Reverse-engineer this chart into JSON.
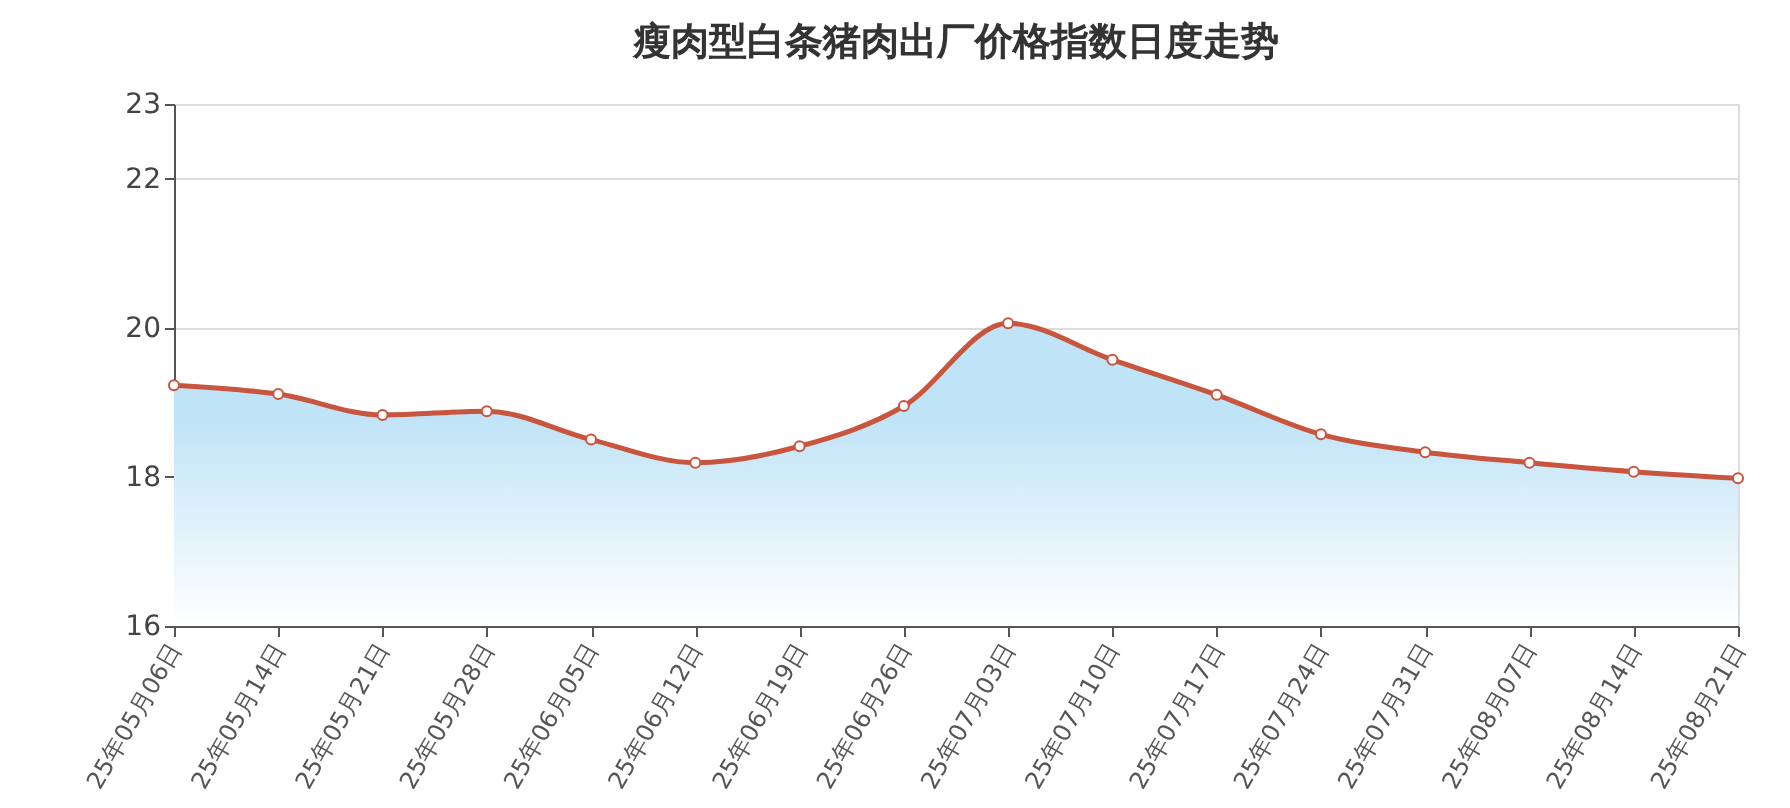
{
  "chart_data": {
    "type": "area",
    "title": "瘦肉型白条猪肉出厂价格指数日度走势",
    "categories": [
      "25年05月06日",
      "25年05月14日",
      "25年05月21日",
      "25年05月28日",
      "25年06月05日",
      "25年06月12日",
      "25年06月19日",
      "25年06月26日",
      "25年07月03日",
      "25年07月10日",
      "25年07月17日",
      "25年07月24日",
      "25年07月31日",
      "25年08月07日",
      "25年08月14日",
      "25年08月21日"
    ],
    "series": [
      {
        "color": "#c8553d",
        "values": [
          19.23,
          19.11,
          18.83,
          18.88,
          18.5,
          18.19,
          18.41,
          18.95,
          20.06,
          19.57,
          19.1,
          18.57,
          18.33,
          18.19,
          18.07,
          17.98
        ]
      }
    ],
    "ylim": [
      16,
      23
    ],
    "yticks": [
      16,
      18,
      20,
      22,
      23
    ],
    "grid": "y",
    "marker": "circle",
    "line_style": "solid",
    "legend": false
  }
}
